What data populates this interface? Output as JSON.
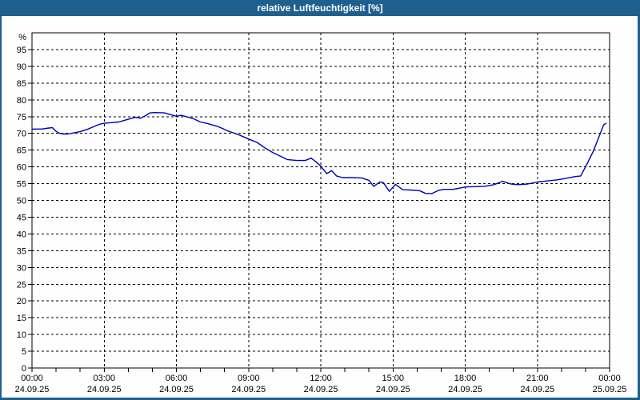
{
  "window": {
    "title": "relative Luftfeuchtigkeit [%]"
  },
  "colors": {
    "titlebar_bg": "#1e5f8e",
    "titlebar_text": "#ffffff",
    "window_border": "#1e5f8e",
    "chart_bg": "#fdfefd",
    "grid": "#000000",
    "axis": "#000000",
    "text": "#000000",
    "line": "#0000b4"
  },
  "chart_data": {
    "type": "line",
    "title": "relative Luftfeuchtigkeit [%]",
    "ylabel": "%",
    "xlabel": "",
    "ylim": [
      0,
      100
    ],
    "xlim_hours": [
      0,
      24
    ],
    "y_ticks": [
      0,
      5,
      10,
      15,
      20,
      25,
      30,
      35,
      40,
      45,
      50,
      55,
      60,
      65,
      70,
      75,
      80,
      85,
      90,
      95
    ],
    "y_unit_label": "%",
    "x_tick_interval_hours": 1,
    "grid": "dashed",
    "legend": "none",
    "x_labels": [
      {
        "hour": 0,
        "time": "00:00",
        "date": "24.09.25"
      },
      {
        "hour": 3,
        "time": "03:00",
        "date": "24.09.25"
      },
      {
        "hour": 6,
        "time": "06:00",
        "date": "24.09.25"
      },
      {
        "hour": 9,
        "time": "09:00",
        "date": "24.09.25"
      },
      {
        "hour": 12,
        "time": "12:00",
        "date": "24.09.25"
      },
      {
        "hour": 15,
        "time": "15:00",
        "date": "24.09.25"
      },
      {
        "hour": 18,
        "time": "18:00",
        "date": "24.09.25"
      },
      {
        "hour": 21,
        "time": "21:00",
        "date": "24.09.25"
      },
      {
        "hour": 24,
        "time": "00:00",
        "date": "25.09.25"
      }
    ],
    "series": [
      {
        "name": "relative Luftfeuchtigkeit",
        "color": "#0000b4",
        "points": [
          [
            0,
            71.3
          ],
          [
            0.4,
            71.3
          ],
          [
            0.7,
            71.6
          ],
          [
            0.85,
            71.7
          ],
          [
            1,
            70.6
          ],
          [
            1.15,
            70
          ],
          [
            1.3,
            69.8
          ],
          [
            1.5,
            69.8
          ],
          [
            1.7,
            70.1
          ],
          [
            2,
            70.5
          ],
          [
            2.3,
            71.2
          ],
          [
            2.6,
            72.1
          ],
          [
            2.8,
            72.7
          ],
          [
            3,
            73
          ],
          [
            3.3,
            73.2
          ],
          [
            3.6,
            73.4
          ],
          [
            3.8,
            73.8
          ],
          [
            4,
            74.2
          ],
          [
            4.3,
            74.8
          ],
          [
            4.5,
            74.5
          ],
          [
            4.7,
            75.2
          ],
          [
            4.9,
            76.1
          ],
          [
            5.1,
            76.2
          ],
          [
            5.5,
            76.1
          ],
          [
            5.7,
            75.7
          ],
          [
            6,
            75.1
          ],
          [
            6.2,
            75.4
          ],
          [
            6.5,
            74.8
          ],
          [
            6.7,
            74.4
          ],
          [
            7,
            73.4
          ],
          [
            7.25,
            73
          ],
          [
            7.5,
            72.5
          ],
          [
            7.7,
            72.1
          ],
          [
            7.9,
            71.5
          ],
          [
            8.1,
            70.8
          ],
          [
            8.35,
            70.2
          ],
          [
            8.65,
            69.4
          ],
          [
            9,
            68.3
          ],
          [
            9.35,
            67.3
          ],
          [
            9.65,
            65.8
          ],
          [
            10,
            64.3
          ],
          [
            10.35,
            63.1
          ],
          [
            10.6,
            62.2
          ],
          [
            11,
            61.9
          ],
          [
            11.35,
            61.9
          ],
          [
            11.6,
            62.6
          ],
          [
            11.8,
            61.5
          ],
          [
            12,
            60.2
          ],
          [
            12.25,
            58
          ],
          [
            12.45,
            58.9
          ],
          [
            12.65,
            57.3
          ],
          [
            12.9,
            56.8
          ],
          [
            13.3,
            56.8
          ],
          [
            13.7,
            56.7
          ],
          [
            14,
            56
          ],
          [
            14.2,
            54.2
          ],
          [
            14.45,
            55.5
          ],
          [
            14.6,
            55.3
          ],
          [
            14.85,
            52.7
          ],
          [
            15.1,
            54.8
          ],
          [
            15.4,
            53.2
          ],
          [
            15.7,
            53.1
          ],
          [
            16.1,
            52.9
          ],
          [
            16.35,
            52.1
          ],
          [
            16.6,
            52
          ],
          [
            16.9,
            53
          ],
          [
            17.1,
            53.3
          ],
          [
            17.5,
            53.3
          ],
          [
            17.8,
            53.7
          ],
          [
            18,
            54
          ],
          [
            18.4,
            54.1
          ],
          [
            18.8,
            54.2
          ],
          [
            19.2,
            54.7
          ],
          [
            19.55,
            55.7
          ],
          [
            19.9,
            54.9
          ],
          [
            20.2,
            54.7
          ],
          [
            20.6,
            54.9
          ],
          [
            21,
            55.5
          ],
          [
            21.4,
            55.8
          ],
          [
            21.8,
            56.1
          ],
          [
            22.2,
            56.6
          ],
          [
            22.55,
            57.1
          ],
          [
            22.8,
            57.3
          ],
          [
            23.05,
            60.7
          ],
          [
            23.3,
            64.3
          ],
          [
            23.5,
            67.9
          ],
          [
            23.75,
            72.5
          ],
          [
            23.85,
            73
          ]
        ]
      }
    ]
  }
}
